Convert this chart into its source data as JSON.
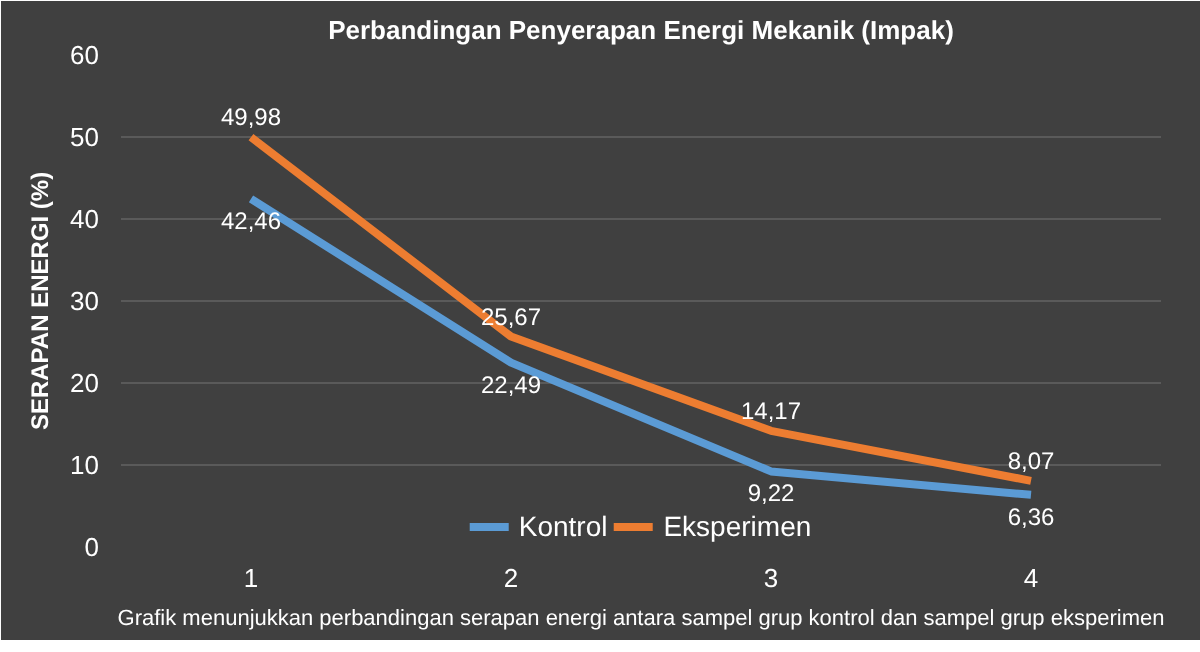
{
  "chart_data": {
    "type": "line",
    "title": "Perbandingan Penyerapan Energi Mekanik (Impak)",
    "ylabel": "SERAPAN ENERGI (%)",
    "categories": [
      "1",
      "2",
      "3",
      "4"
    ],
    "series": [
      {
        "name": "Kontrol",
        "color": "#5b9bd5",
        "values": [
          42.46,
          22.49,
          9.22,
          6.36
        ],
        "value_labels": [
          "42,46",
          "22,49",
          "9,22",
          "6,36"
        ]
      },
      {
        "name": "Eksperimen",
        "color": "#ed7d31",
        "values": [
          49.98,
          25.67,
          14.17,
          8.07
        ],
        "value_labels": [
          "49,98",
          "25,67",
          "14,17",
          "8,07"
        ]
      }
    ],
    "ylim": [
      0,
      60
    ],
    "yticks": [
      0,
      10,
      20,
      30,
      40,
      50,
      60
    ],
    "grid": "y",
    "legend": "bottom",
    "data_labels": true,
    "line_style": "solid",
    "marker": "none",
    "annotations": [
      "Grafik menunjukkan perbandingan serapan energi antara sampel grup kontrol dan sampel grup eksperimen"
    ]
  }
}
